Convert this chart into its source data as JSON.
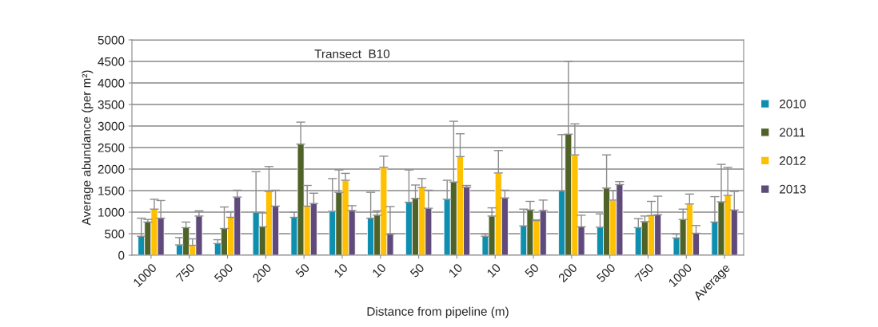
{
  "chart_data": {
    "type": "bar",
    "title": "Transect  B10",
    "xlabel": "Distance from pipeline (m)",
    "ylabel": "Average abundance (per m²)",
    "categories": [
      "1000",
      "750",
      "500",
      "200",
      "50",
      "10",
      "10",
      "50",
      "10",
      "10",
      "50",
      "200",
      "500",
      "750",
      "1000",
      "Average"
    ],
    "ylim": [
      0,
      5000
    ],
    "yticks": [
      0,
      500,
      1000,
      1500,
      2000,
      2500,
      3000,
      3500,
      4000,
      4500,
      5000
    ],
    "grid": "y",
    "legend": "right",
    "series": [
      {
        "name": "2010",
        "color": "#0e8fb0",
        "values": [
          440,
          240,
          270,
          1000,
          880,
          1020,
          860,
          1230,
          1300,
          440,
          680,
          1500,
          650,
          640,
          400,
          770
        ],
        "errors": [
          [
            440,
            860
          ],
          [
            240,
            410
          ],
          [
            270,
            360
          ],
          [
            1000,
            1940
          ],
          [
            880,
            1000
          ],
          [
            1020,
            1780
          ],
          [
            860,
            1460
          ],
          [
            1230,
            1980
          ],
          [
            1300,
            1740
          ],
          [
            440,
            490
          ],
          [
            680,
            1070
          ],
          [
            1500,
            2800
          ],
          [
            650,
            960
          ],
          [
            640,
            850
          ],
          [
            400,
            490
          ],
          [
            770,
            1360
          ]
        ]
      },
      {
        "name": "2011",
        "color": "#4f6228",
        "values": [
          770,
          640,
          620,
          660,
          2580,
          1460,
          930,
          1320,
          1700,
          910,
          1050,
          2810,
          1560,
          780,
          830,
          1240
        ],
        "errors": [
          [
            770,
            830
          ],
          [
            640,
            770
          ],
          [
            620,
            1120
          ],
          [
            660,
            980
          ],
          [
            2580,
            3090
          ],
          [
            1460,
            1980
          ],
          [
            930,
            1030
          ],
          [
            1320,
            1630
          ],
          [
            1700,
            3110
          ],
          [
            910,
            1100
          ],
          [
            1050,
            1250
          ],
          [
            2810,
            4500
          ],
          [
            1560,
            2330
          ],
          [
            780,
            910
          ],
          [
            830,
            1070
          ],
          [
            1240,
            2110
          ]
        ]
      },
      {
        "name": "2012",
        "color": "#ffc000",
        "values": [
          1070,
          230,
          880,
          1480,
          1140,
          1740,
          2040,
          1570,
          2290,
          1910,
          800,
          2330,
          1280,
          920,
          1190,
          1390
        ],
        "errors": [
          [
            1070,
            1300
          ],
          [
            230,
            380
          ],
          [
            880,
            1010
          ],
          [
            1480,
            2060
          ],
          [
            1140,
            1620
          ],
          [
            1740,
            1900
          ],
          [
            2040,
            2300
          ],
          [
            1570,
            1780
          ],
          [
            2290,
            2820
          ],
          [
            1910,
            2430
          ],
          [
            800,
            820
          ],
          [
            2330,
            3050
          ],
          [
            1280,
            1500
          ],
          [
            920,
            1250
          ],
          [
            1190,
            1420
          ],
          [
            1390,
            2040
          ]
        ]
      },
      {
        "name": "2013",
        "color": "#604a7b",
        "values": [
          860,
          910,
          1350,
          1140,
          1200,
          1040,
          490,
          1090,
          1580,
          1330,
          1040,
          660,
          1640,
          940,
          510,
          1050
        ],
        "errors": [
          [
            860,
            1270
          ],
          [
            910,
            1030
          ],
          [
            1350,
            1510
          ],
          [
            1140,
            1510
          ],
          [
            1200,
            1440
          ],
          [
            1040,
            1150
          ],
          [
            490,
            1130
          ],
          [
            1090,
            1510
          ],
          [
            1580,
            1620
          ],
          [
            1330,
            1510
          ],
          [
            1040,
            1280
          ],
          [
            660,
            930
          ],
          [
            1640,
            1710
          ],
          [
            940,
            1370
          ],
          [
            510,
            690
          ],
          [
            1050,
            1480
          ]
        ]
      }
    ]
  }
}
